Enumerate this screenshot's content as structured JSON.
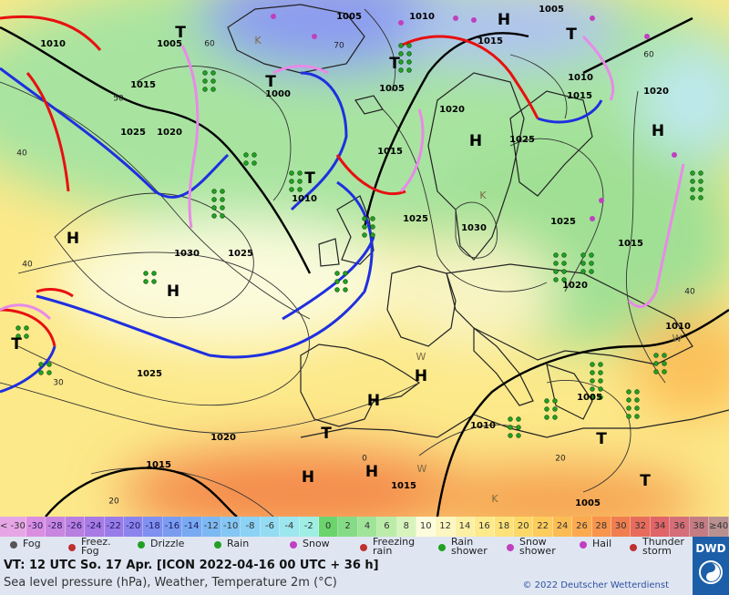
{
  "map": {
    "pressure_labels": [
      "1005",
      "1010",
      "1005",
      "1010",
      "1015",
      "1000",
      "1005",
      "1015",
      "1005",
      "1010",
      "1015",
      "1020",
      "1020",
      "1025",
      "1020",
      "1015",
      "1025",
      "1010",
      "1025",
      "1030",
      "1025",
      "1015",
      "1030",
      "1025",
      "1020",
      "1010",
      "1025",
      "1005",
      "1010",
      "1020",
      "1015",
      "1015",
      "1005"
    ],
    "temperature_labels": [
      "60",
      "70",
      "50",
      "40",
      "40",
      "30",
      "40",
      "60",
      "20",
      "20",
      "0"
    ],
    "system_letters": [
      "H",
      "T",
      "T",
      "T",
      "T",
      "H",
      "H",
      "T",
      "H",
      "H",
      "T",
      "H",
      "H",
      "T",
      "H",
      "H",
      "T",
      "T"
    ],
    "minor_letters": [
      "K",
      "K",
      "W",
      "W",
      "K",
      "W"
    ]
  },
  "scale": {
    "labels": [
      "< -30",
      -30,
      -28,
      -26,
      -24,
      -22,
      -20,
      -18,
      -16,
      -14,
      -12,
      -10,
      -8,
      -6,
      -4,
      -2,
      0,
      2,
      4,
      6,
      8,
      10,
      12,
      14,
      16,
      18,
      20,
      22,
      24,
      26,
      28,
      30,
      32,
      34,
      36,
      38,
      "≥40"
    ],
    "colors": [
      "#e6a6e6",
      "#d98ee0",
      "#c886e0",
      "#b87ee0",
      "#a87ae4",
      "#9a7ce8",
      "#8c84ec",
      "#8090f0",
      "#7a9cf0",
      "#78aaf2",
      "#7cb8f2",
      "#84c6f4",
      "#8cd2f4",
      "#94dcf2",
      "#9ce6ee",
      "#9eeee4",
      "#6cd46c",
      "#86dc86",
      "#a0e49a",
      "#bcecaa",
      "#d8f4bc",
      "#fcfcdc",
      "#fcf6c0",
      "#fcf0a4",
      "#fcea8c",
      "#fce278",
      "#fcd868",
      "#fccc5c",
      "#fcbc54",
      "#fcaa50",
      "#f8944c",
      "#f07e50",
      "#e86c5c",
      "#e06468",
      "#d46e78",
      "#c47c84",
      "#b89090"
    ]
  },
  "weather_legend": [
    "Fog",
    "Freez. Fog",
    "Drizzle",
    "Rain",
    "Snow",
    "Freezing rain",
    "Rain shower",
    "Snow shower",
    "Hail",
    "Thunder storm"
  ],
  "footer": {
    "valid_time": "VT: 12 UTC So.  17 Apr. [ICON 2022-04-16  00 UTC + 36 h]",
    "description": "Sea level pressure (hPa), Weather, Temperature 2m (°C)",
    "copyright": "© 2022 Deutscher Wetterdienst",
    "logo": "DWD"
  }
}
